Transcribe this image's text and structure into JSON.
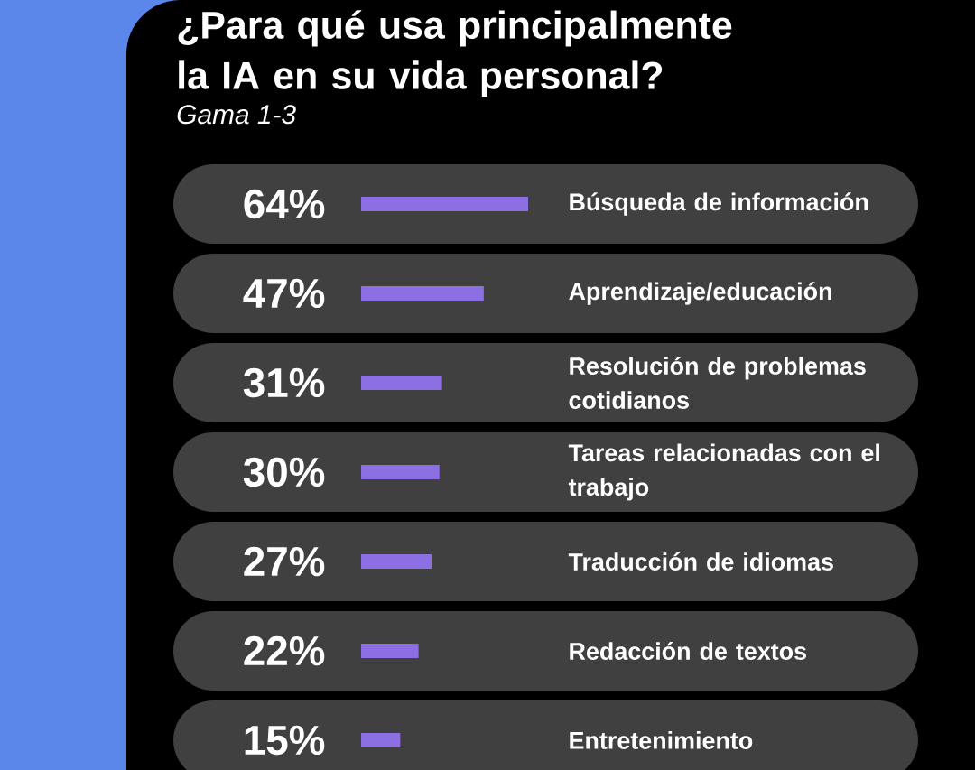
{
  "chart_data": {
    "type": "bar",
    "orientation": "horizontal",
    "title": "¿Para qué usa principalmente la IA en su vida personal?",
    "subtitle": "Gama 1-3",
    "categories": [
      "Búsqueda de información",
      "Aprendizaje/educación",
      "Resolución de problemas cotidianos",
      "Tareas relacionadas con el trabajo",
      "Traducción de idiomas",
      "Redacción de textos",
      "Entretenimiento"
    ],
    "values": [
      64,
      47,
      31,
      30,
      27,
      22,
      15
    ],
    "value_labels": [
      "64%",
      "47%",
      "31%",
      "30%",
      "27%",
      "22%",
      "15%"
    ],
    "color": "#8b6fe3"
  }
}
